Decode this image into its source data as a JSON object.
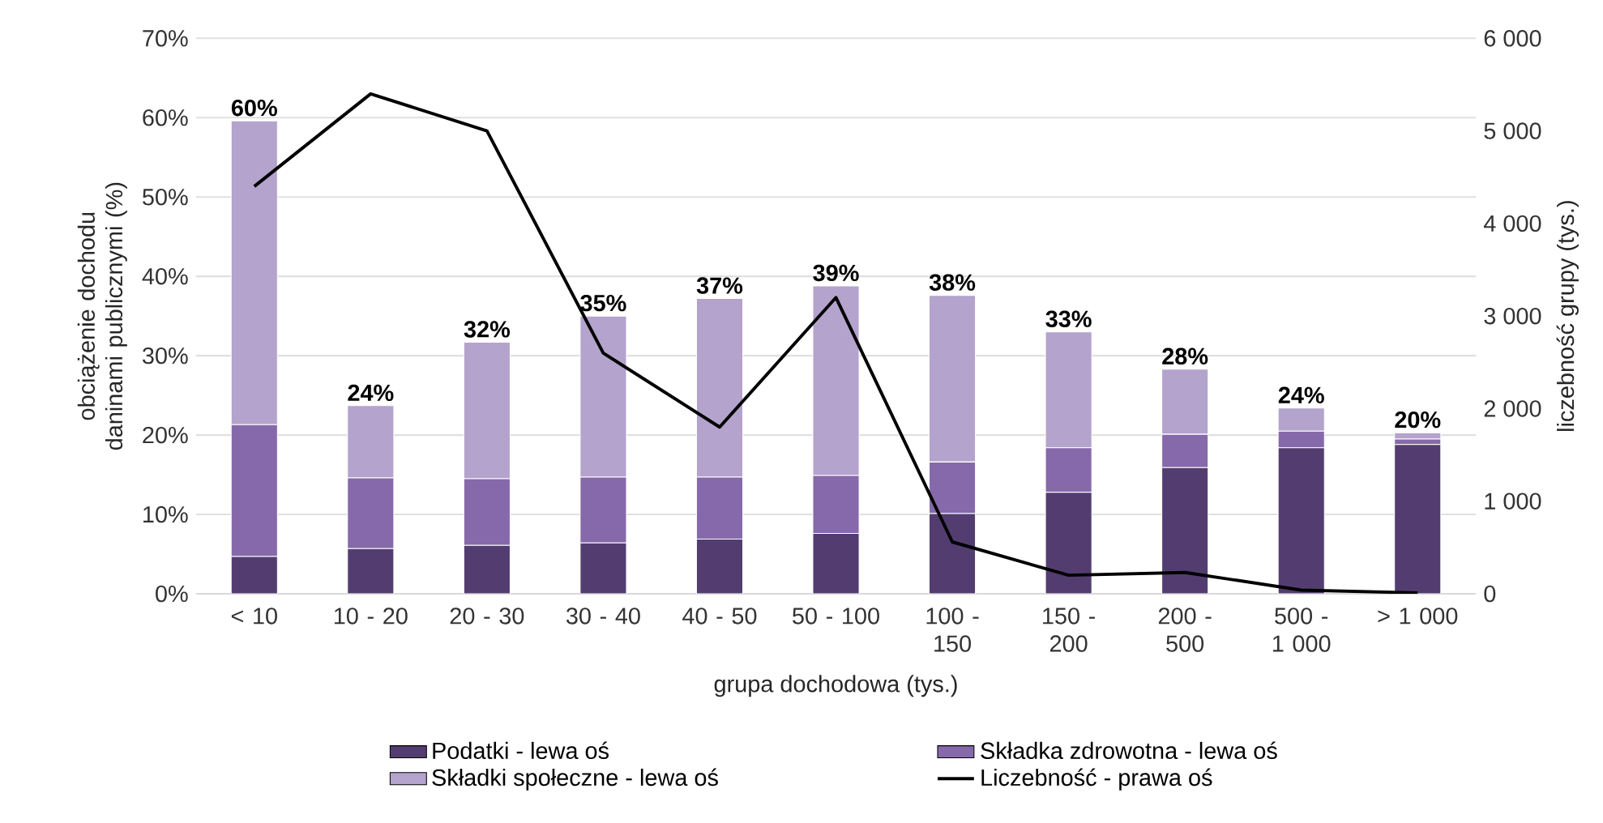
{
  "chart_data": {
    "type": "bar",
    "stacked": true,
    "xlabel": "grupa dochodowa (tys.)",
    "ylabel": "obciążenie dochodu daninami publicznymi (%)",
    "y2label": "liczebność grupy (tys.)",
    "categories": [
      "< 10",
      "10 - 20",
      "20 - 30",
      "30 - 40",
      "40 - 50",
      "50 - 100",
      "100 - 150",
      "150 - 200",
      "200 - 500",
      "500 - 1 000",
      "> 1 000"
    ],
    "series": [
      {
        "name": "Podatki - lewa oś",
        "color": "#533d70",
        "values": [
          4.7,
          5.7,
          6.1,
          6.4,
          6.9,
          7.6,
          10.1,
          12.8,
          15.9,
          18.4,
          18.8
        ]
      },
      {
        "name": "Składka zdrowotna - lewa oś",
        "color": "#8669aa",
        "values": [
          16.6,
          8.9,
          8.4,
          8.3,
          7.8,
          7.3,
          6.5,
          5.6,
          4.2,
          2.1,
          0.7
        ]
      },
      {
        "name": "Składki społeczne - lewa oś",
        "color": "#b4a3cc",
        "values": [
          38.3,
          9.1,
          17.2,
          20.3,
          22.5,
          23.9,
          21.0,
          14.6,
          8.2,
          2.9,
          0.8
        ]
      },
      {
        "name": "Liczebność - prawa oś",
        "type": "line",
        "axis": "y2",
        "color": "#000000",
        "values": [
          4400,
          5400,
          5000,
          2600,
          1800,
          3200,
          560,
          200,
          230,
          40,
          10
        ]
      }
    ],
    "totals": [
      "60%",
      "24%",
      "32%",
      "35%",
      "37%",
      "39%",
      "38%",
      "33%",
      "28%",
      "24%",
      "20%"
    ],
    "ylim": [
      0,
      70
    ],
    "yticks": [
      {
        "value": 0,
        "label": "0%"
      },
      {
        "value": 10,
        "label": "10%"
      },
      {
        "value": 20,
        "label": "20%"
      },
      {
        "value": 30,
        "label": "30%"
      },
      {
        "value": 40,
        "label": "40%"
      },
      {
        "value": 50,
        "label": "50%"
      },
      {
        "value": 60,
        "label": "60%"
      },
      {
        "value": 70,
        "label": "70%"
      }
    ],
    "y2lim": [
      0,
      6000
    ],
    "y2ticks": [
      0,
      {
        "value": 1000,
        "label": "1 000"
      },
      {
        "value": 2000,
        "label": "2 000"
      },
      {
        "value": 3000,
        "label": "3 000"
      },
      {
        "value": 4000,
        "label": "4 000"
      },
      {
        "value": 5000,
        "label": "5 000"
      },
      {
        "value": 6000,
        "label": "6 000"
      }
    ],
    "grid": "y",
    "legend": "bottom"
  }
}
